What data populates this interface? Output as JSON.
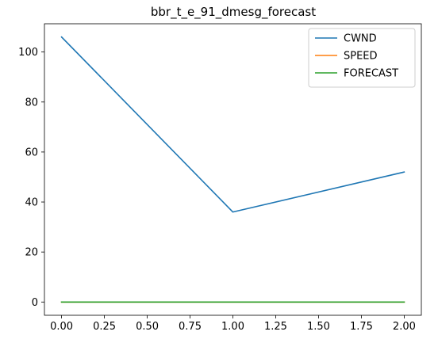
{
  "chart_data": {
    "type": "line",
    "title": "bbr_t_e_91_dmesg_forecast",
    "xlabel": "",
    "ylabel": "",
    "x": [
      0,
      1,
      2
    ],
    "xlim": [
      -0.1,
      2.1
    ],
    "ylim": [
      -5.3,
      111.3
    ],
    "xticks": [
      0,
      0.25,
      0.5,
      0.75,
      1.0,
      1.25,
      1.5,
      1.75,
      2.0
    ],
    "xtick_labels": [
      "0.00",
      "0.25",
      "0.50",
      "0.75",
      "1.00",
      "1.25",
      "1.50",
      "1.75",
      "2.00"
    ],
    "yticks": [
      0,
      20,
      40,
      60,
      80,
      100
    ],
    "ytick_labels": [
      "0",
      "20",
      "40",
      "60",
      "80",
      "100"
    ],
    "grid": false,
    "legend_position": "top-right",
    "series": [
      {
        "name": "CWND",
        "values": [
          106,
          36,
          52
        ],
        "color": "#1f77b4"
      },
      {
        "name": "SPEED",
        "values": [
          0,
          0,
          0
        ],
        "color": "#ff7f0e"
      },
      {
        "name": "FORECAST",
        "values": [
          0,
          0,
          0
        ],
        "color": "#2ca02c"
      }
    ]
  }
}
